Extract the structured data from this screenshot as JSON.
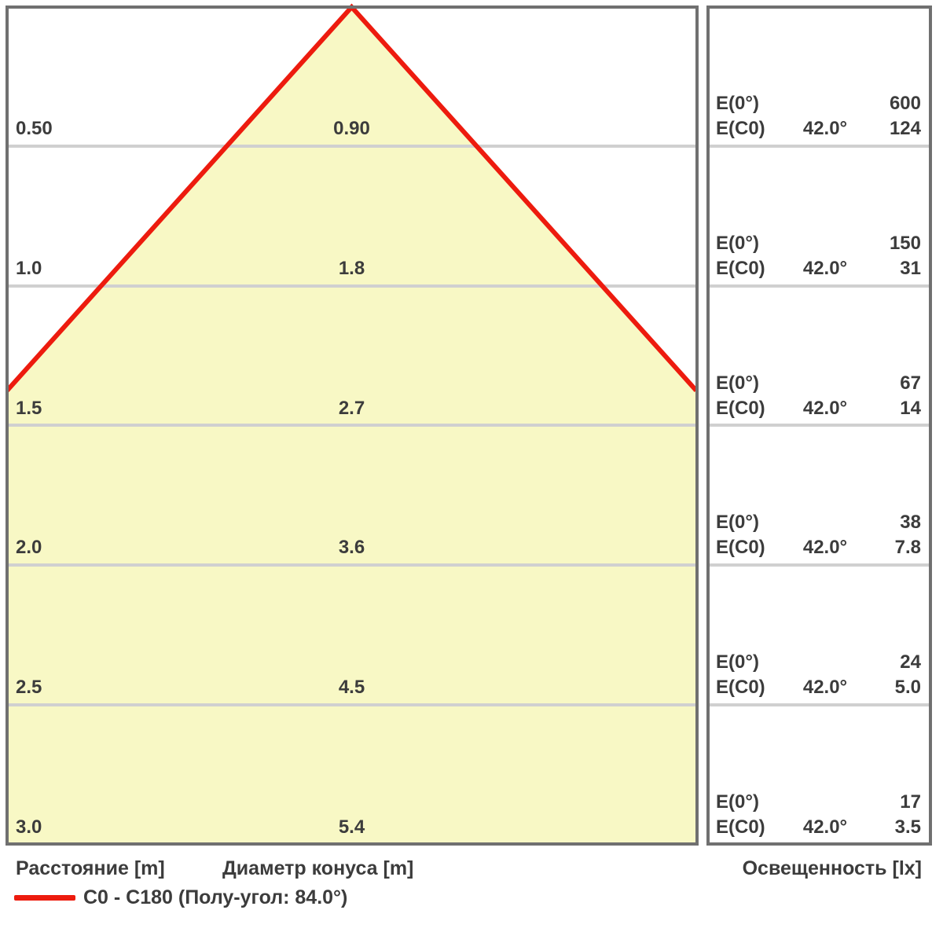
{
  "footer": {
    "distance_label": "Расстояние [m]",
    "diameter_label": "Диаметр конуса [m]",
    "illuminance_label": "Освещенность [lx]"
  },
  "legend": {
    "line_label": "C0 - C180 (Полу-угол: 84.0°)"
  },
  "colors": {
    "cone_fill": "#F8F8C5",
    "beam_red": "#ED1B0E",
    "grid_gray": "#D0D0D0",
    "border_gray": "#707070",
    "text_gray": "#3C3C3C"
  },
  "chart_data": {
    "type": "area",
    "subtype": "photometric-cone-diagram",
    "title": "",
    "legend_entry": "C0 - C180 (Полу-угол: 84.0°)",
    "half_angle_deg": 42.0,
    "full_angle_deg": 84.0,
    "x_axis": "Диаметр конуса [m]",
    "y_axis": "Расстояние [m]",
    "value_axis": "Освещенность [lx]",
    "distances_m": [
      0.5,
      1.0,
      1.5,
      2.0,
      2.5,
      3.0
    ],
    "cone_diameters_m": [
      0.9,
      1.8,
      2.7,
      3.6,
      4.5,
      5.4
    ],
    "E0_lx": [
      600,
      150,
      67,
      38,
      24,
      17
    ],
    "EC0_lx": [
      124,
      31,
      14,
      7.8,
      5.0,
      3.5
    ],
    "labels": {
      "e0": "E(0°)",
      "ec0": "E(C0)"
    },
    "rows": [
      {
        "distance": "0.50",
        "diameter": "0.90",
        "e0_label": "E(0°)",
        "e0": "600",
        "ec0_label": "E(C0)",
        "angle": "42.0°",
        "ec0": "124"
      },
      {
        "distance": "1.0",
        "diameter": "1.8",
        "e0_label": "E(0°)",
        "e0": "150",
        "ec0_label": "E(C0)",
        "angle": "42.0°",
        "ec0": "31"
      },
      {
        "distance": "1.5",
        "diameter": "2.7",
        "e0_label": "E(0°)",
        "e0": "67",
        "ec0_label": "E(C0)",
        "angle": "42.0°",
        "ec0": "14"
      },
      {
        "distance": "2.0",
        "diameter": "3.6",
        "e0_label": "E(0°)",
        "e0": "38",
        "ec0_label": "E(C0)",
        "angle": "42.0°",
        "ec0": "7.8"
      },
      {
        "distance": "2.5",
        "diameter": "4.5",
        "e0_label": "E(0°)",
        "e0": "24",
        "ec0_label": "E(C0)",
        "angle": "42.0°",
        "ec0": "5.0"
      },
      {
        "distance": "3.0",
        "diameter": "5.4",
        "e0_label": "E(0°)",
        "e0": "17",
        "ec0_label": "E(C0)",
        "angle": "42.0°",
        "ec0": "3.5"
      }
    ]
  }
}
